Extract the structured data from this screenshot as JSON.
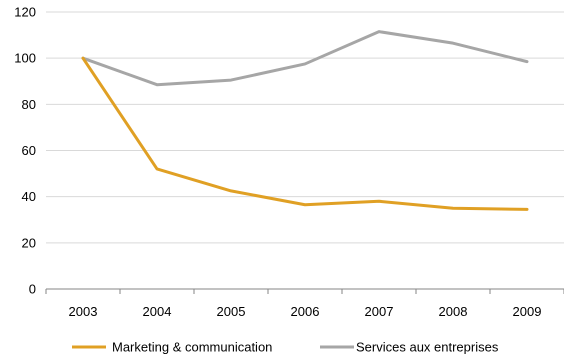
{
  "chart_data": {
    "type": "line",
    "categories": [
      "2003",
      "2004",
      "2005",
      "2006",
      "2007",
      "2008",
      "2009"
    ],
    "series": [
      {
        "name": "Marketing & communication",
        "color": "#e0a024",
        "values": [
          100,
          52,
          42.5,
          36.5,
          38,
          35,
          34.5
        ]
      },
      {
        "name": "Services aux entreprises",
        "color": "#a6a6a6",
        "values": [
          100,
          88.5,
          90.5,
          97.5,
          111.5,
          106.5,
          98.5
        ]
      }
    ],
    "title": "",
    "xlabel": "",
    "ylabel": "",
    "ylim": [
      0,
      120
    ],
    "yticks": [
      0,
      20,
      40,
      60,
      80,
      100,
      120
    ],
    "grid": true,
    "legend": "bottom"
  }
}
